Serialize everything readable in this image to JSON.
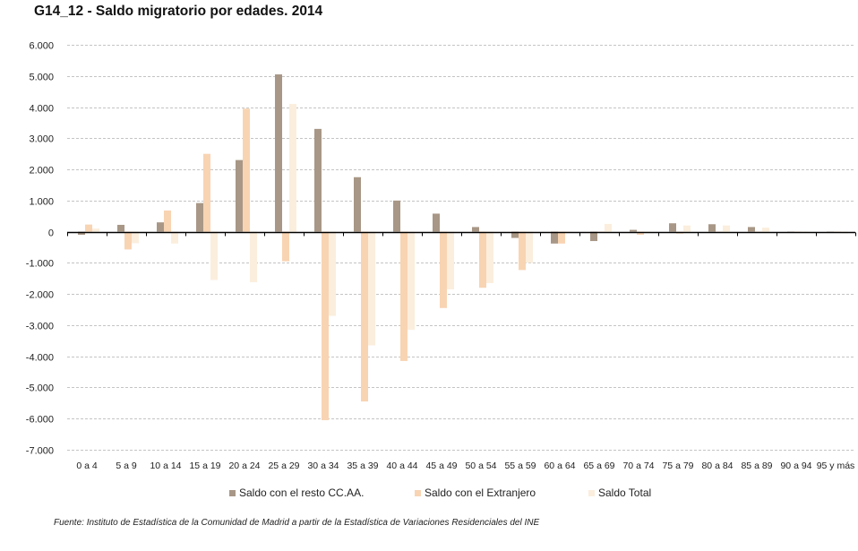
{
  "chart_data": {
    "type": "bar",
    "title": "G14_12 - Saldo migratorio  por edades. 2014",
    "xlabel": "",
    "ylabel": "",
    "ylim": [
      -7000,
      6000
    ],
    "yticks": [
      6000,
      5000,
      4000,
      3000,
      2000,
      1000,
      0,
      -1000,
      -2000,
      -3000,
      -4000,
      -5000,
      -6000,
      -7000
    ],
    "ytick_labels": [
      "6.000",
      "5.000",
      "4.000",
      "3.000",
      "2.000",
      "1.000",
      "0",
      "-1.000",
      "-2.000",
      "-3.000",
      "-4.000",
      "-5.000",
      "-6.000",
      "-7.000"
    ],
    "grid": true,
    "legend_position": "bottom",
    "categories": [
      "0 a 4",
      "5 a 9",
      "10 a 14",
      "15 a 19",
      "20 a 24",
      "25 a 29",
      "30 a 34",
      "35 a 39",
      "40 a 44",
      "45 a 49",
      "50 a 54",
      "55 a 59",
      "60 a 64",
      "65 a 69",
      "70 a 74",
      "75 a 79",
      "80 a 84",
      "85 a 89",
      "90 a 94",
      "95 y más"
    ],
    "series": [
      {
        "name": "Saldo con el resto  CC.AA.",
        "color": "#a89786",
        "values": [
          -100,
          220,
          300,
          920,
          2300,
          5050,
          3300,
          1750,
          1000,
          580,
          150,
          -200,
          -380,
          -300,
          60,
          270,
          240,
          150,
          0,
          -30
        ]
      },
      {
        "name": "Saldo con el Extranjero",
        "color": "#f8d4b3",
        "values": [
          230,
          -570,
          680,
          2500,
          3950,
          -950,
          -6050,
          -5450,
          -4150,
          -2450,
          -1800,
          -1230,
          -380,
          -10,
          -100,
          -60,
          -40,
          -20,
          -10,
          -20
        ]
      },
      {
        "name": "Saldo Total",
        "color": "#fbeedd",
        "values": [
          100,
          -370,
          -380,
          -1550,
          -1620,
          4100,
          -2700,
          -3650,
          -3150,
          -1850,
          -1650,
          -1000,
          0,
          250,
          -40,
          200,
          200,
          130,
          -10,
          -50
        ]
      }
    ]
  },
  "source": "Fuente: Instituto de Estadística de la  Comunidad de Madrid a partir de la  Estadística de Variaciones Residenciales del INE"
}
